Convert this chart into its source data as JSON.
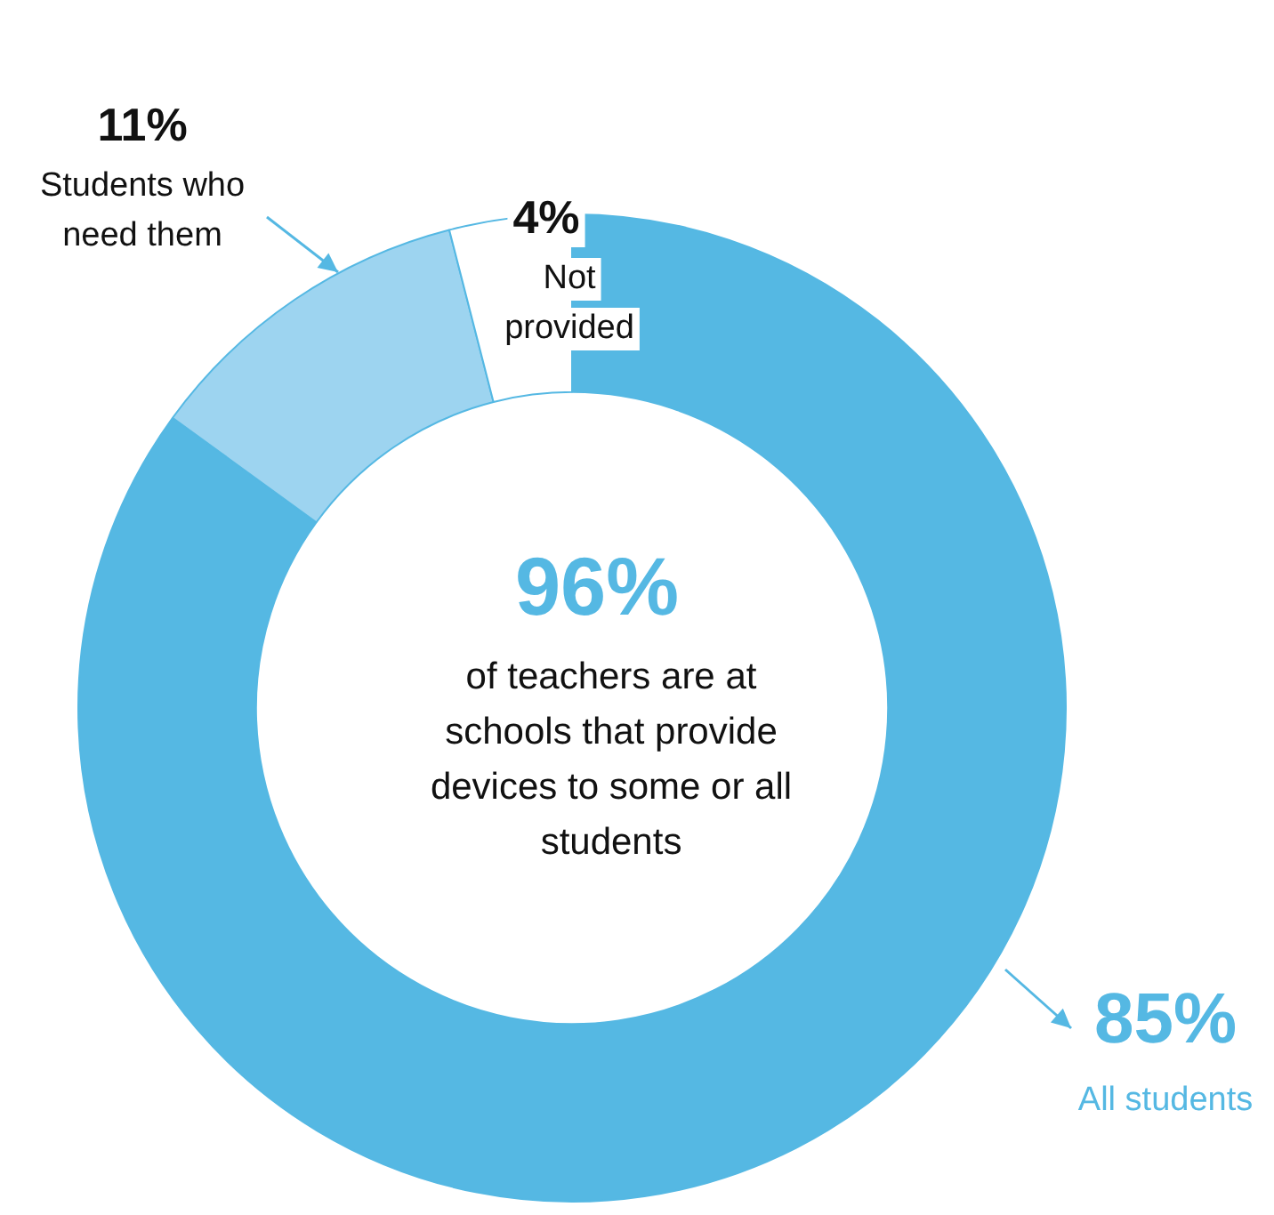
{
  "chart_data": {
    "type": "donut",
    "categories": [
      "All students",
      "Students who need them",
      "Not provided"
    ],
    "values": [
      85,
      11,
      4
    ],
    "colors": [
      "#55b8e3",
      "#9dd4f0",
      "#ffffff"
    ],
    "value_labels": [
      "85%",
      "11%",
      "4%"
    ],
    "annotations": [
      "96%",
      "of teachers are at schools that provide devices to some or all students"
    ],
    "legend": false
  }
}
